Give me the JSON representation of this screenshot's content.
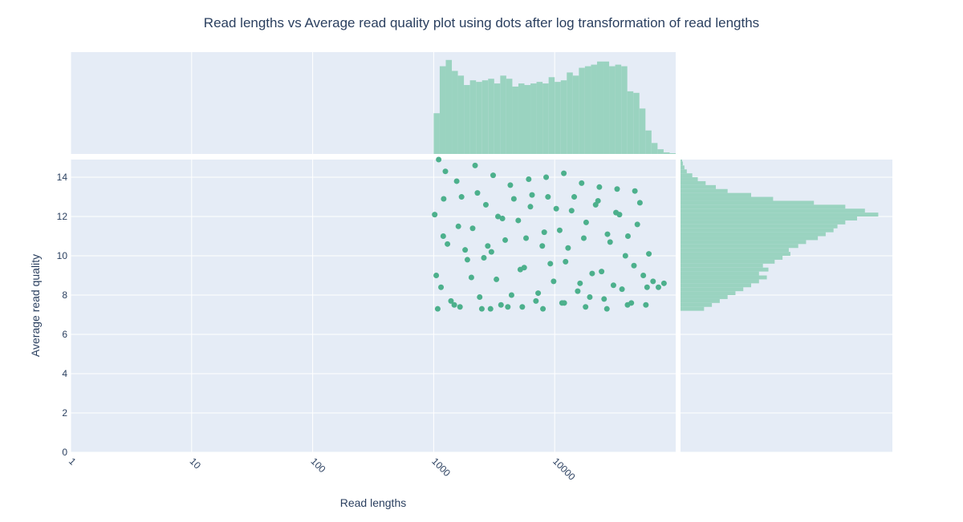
{
  "chart_data": {
    "type": "scatter",
    "title": "Read lengths vs Average read quality plot using dots after log transformation of read lengths",
    "x_label": "Read lengths",
    "y_label": "Average read quality",
    "xscale": "log",
    "xlim": [
      1,
      100000
    ],
    "xticks": [
      1,
      10,
      100,
      1000,
      10000
    ],
    "ylim": [
      0,
      14.9
    ],
    "yticks": [
      0,
      2,
      4,
      6,
      8,
      10,
      12,
      14
    ],
    "grid": true,
    "series": [
      {
        "color": "#4cb08c",
        "x": [
          1020,
          1150,
          1300,
          1480,
          1700,
          1900,
          2100,
          2400,
          2700,
          3000,
          3300,
          3700,
          4100,
          4600,
          5200,
          5800,
          6500,
          7300,
          8200,
          9200,
          10300,
          11500,
          12900,
          14500,
          16200,
          18200,
          20400,
          22800,
          25600,
          28700,
          32100,
          36000,
          40300,
          45200,
          50600,
          56700,
          60000,
          1050,
          1210,
          1390,
          1600,
          1820,
          2050,
          2300,
          2600,
          2950,
          3400,
          3900,
          4400,
          5000,
          5600,
          6300,
          7000,
          7900,
          8800,
          9800,
          11000,
          12300,
          13800,
          15500,
          17400,
          19500,
          21800,
          24400,
          27300,
          30600,
          34300,
          38400,
          43000,
          48200,
          54000,
          58000,
          1100,
          1250,
          1550,
          2200,
          3100,
          4300,
          6100,
          8500,
          11900,
          16700,
          23400,
          32800,
          46000,
          1080,
          1650,
          2500,
          3600,
          5400,
          8000,
          12000,
          18000,
          27000,
          40000,
          65000,
          72000,
          80000,
          1200,
          2800
        ],
        "y": [
          12.1,
          8.4,
          10.6,
          7.5,
          13.0,
          9.8,
          11.4,
          7.9,
          12.6,
          10.2,
          8.8,
          11.9,
          7.4,
          12.9,
          9.3,
          10.9,
          13.1,
          8.1,
          11.2,
          9.6,
          12.4,
          7.6,
          10.4,
          13.0,
          8.6,
          11.7,
          9.1,
          12.8,
          7.8,
          10.7,
          12.2,
          8.3,
          11.0,
          9.5,
          12.7,
          7.5,
          10.1,
          9.0,
          12.9,
          7.7,
          11.5,
          10.3,
          8.9,
          13.2,
          9.9,
          7.3,
          12.0,
          10.8,
          8.0,
          11.8,
          9.4,
          12.5,
          7.7,
          10.5,
          13.0,
          8.7,
          11.3,
          9.7,
          12.3,
          8.2,
          10.9,
          7.9,
          12.6,
          9.2,
          11.1,
          8.5,
          12.1,
          10.0,
          7.6,
          11.6,
          9.0,
          8.4,
          14.9,
          14.3,
          13.8,
          14.6,
          14.1,
          13.6,
          13.9,
          14.0,
          14.2,
          13.7,
          13.5,
          13.4,
          13.3,
          7.3,
          7.4,
          7.3,
          7.5,
          7.4,
          7.3,
          7.6,
          7.4,
          7.3,
          7.5,
          8.7,
          8.4,
          8.6,
          11.0,
          10.5
        ]
      }
    ],
    "marginal_x": {
      "type": "histogram",
      "color": "#9ad3c0",
      "lim": [
        0,
        130
      ],
      "bins": [
        1000,
        1122,
        1259,
        1413,
        1585,
        1778,
        1995,
        2239,
        2512,
        2818,
        3162,
        3548,
        3981,
        4467,
        5012,
        5623,
        6310,
        7079,
        7943,
        8913,
        10000,
        11220,
        12589,
        14125,
        15849,
        17783,
        19953,
        22387,
        25119,
        28184,
        31623,
        35481,
        39811,
        44668,
        50119,
        56234,
        63096,
        70795,
        79433,
        89125,
        100000
      ],
      "counts": [
        52,
        112,
        120,
        106,
        100,
        88,
        94,
        92,
        94,
        96,
        90,
        100,
        96,
        86,
        90,
        88,
        90,
        92,
        90,
        98,
        92,
        94,
        104,
        100,
        110,
        112,
        114,
        118,
        118,
        112,
        114,
        112,
        80,
        78,
        58,
        30,
        14,
        6,
        2,
        1
      ]
    },
    "marginal_y": {
      "type": "histogram",
      "color": "#9ad3c0",
      "lim": [
        0,
        270
      ],
      "bins": [
        7.2,
        7.4,
        7.6,
        7.8,
        8.0,
        8.2,
        8.4,
        8.6,
        8.8,
        9.0,
        9.2,
        9.4,
        9.6,
        9.8,
        10.0,
        10.2,
        10.4,
        10.6,
        10.8,
        11.0,
        11.2,
        11.4,
        11.6,
        11.8,
        12.0,
        12.2,
        12.4,
        12.6,
        12.8,
        13.0,
        13.2,
        13.4,
        13.6,
        13.8,
        14.0,
        14.2,
        14.4,
        14.6,
        14.8,
        15.0
      ],
      "counts": [
        30,
        40,
        50,
        60,
        70,
        80,
        90,
        100,
        110,
        100,
        112,
        105,
        120,
        130,
        140,
        138,
        150,
        160,
        175,
        185,
        195,
        200,
        210,
        225,
        252,
        235,
        210,
        170,
        118,
        90,
        60,
        45,
        32,
        22,
        15,
        8,
        5,
        3,
        2
      ]
    }
  }
}
